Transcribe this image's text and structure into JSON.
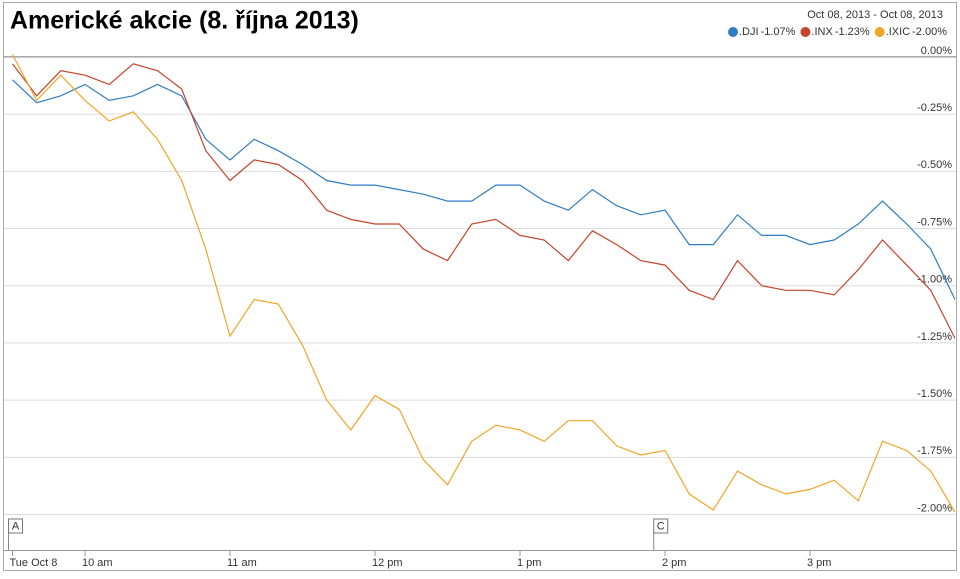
{
  "chart_data": {
    "type": "line",
    "title": "Americké akcie (8. října 2013)",
    "date_range": "Oct 08, 2013  -  Oct 08, 2013",
    "x": [
      570,
      580,
      590,
      600,
      610,
      620,
      630,
      640,
      650,
      660,
      670,
      680,
      690,
      700,
      710,
      720,
      730,
      740,
      750,
      760,
      770,
      780,
      790,
      800,
      810,
      820,
      830,
      840,
      850,
      860,
      870,
      880,
      890,
      900,
      910,
      920,
      930,
      940,
      950,
      960
    ],
    "xlim": [
      570,
      960
    ],
    "xticks": [
      {
        "value": 570,
        "label": "Tue Oct 8"
      },
      {
        "value": 600,
        "label": "10 am"
      },
      {
        "value": 660,
        "label": "11 am"
      },
      {
        "value": 720,
        "label": "12 pm"
      },
      {
        "value": 780,
        "label": "1 pm"
      },
      {
        "value": 840,
        "label": "2 pm"
      },
      {
        "value": 900,
        "label": "3 pm"
      }
    ],
    "ylim": [
      -2.155,
      0.227
    ],
    "yticks": [
      {
        "value": 0,
        "label": "0.00%"
      },
      {
        "value": -0.25,
        "label": "-0.25%"
      },
      {
        "value": -0.5,
        "label": "-0.50%"
      },
      {
        "value": -0.75,
        "label": "-0.75%"
      },
      {
        "value": -1,
        "label": "-1.00%"
      },
      {
        "value": -1.25,
        "label": "-1.25%"
      },
      {
        "value": -1.5,
        "label": "-1.50%"
      },
      {
        "value": -1.75,
        "label": "-1.75%"
      },
      {
        "value": -2,
        "label": "-2.00%"
      }
    ],
    "grid": true,
    "legend": "top-right",
    "annotations": [
      {
        "label": "A",
        "x": 570
      },
      {
        "label": "C",
        "x": 837
      }
    ],
    "series": [
      {
        "name": ".DJI",
        "change": "-1.07%",
        "color": "#2f7ec1",
        "values": [
          -0.1,
          -0.2,
          -0.17,
          -0.12,
          -0.19,
          -0.17,
          -0.12,
          -0.17,
          -0.36,
          -0.45,
          -0.36,
          -0.41,
          -0.47,
          -0.54,
          -0.56,
          -0.56,
          -0.58,
          -0.6,
          -0.63,
          -0.63,
          -0.56,
          -0.56,
          -0.63,
          -0.67,
          -0.58,
          -0.65,
          -0.69,
          -0.67,
          -0.82,
          -0.82,
          -0.69,
          -0.78,
          -0.78,
          -0.82,
          -0.8,
          -0.73,
          -0.63,
          -0.73,
          -0.84,
          -1.06
        ]
      },
      {
        "name": ".INX",
        "change": "-1.23%",
        "color": "#c6452a",
        "values": [
          -0.03,
          -0.17,
          -0.06,
          -0.08,
          -0.12,
          -0.03,
          -0.06,
          -0.14,
          -0.41,
          -0.54,
          -0.45,
          -0.47,
          -0.54,
          -0.67,
          -0.71,
          -0.73,
          -0.73,
          -0.84,
          -0.89,
          -0.73,
          -0.71,
          -0.78,
          -0.8,
          -0.89,
          -0.76,
          -0.82,
          -0.89,
          -0.91,
          -1.02,
          -1.06,
          -0.89,
          -1.0,
          -1.02,
          -1.02,
          -1.04,
          -0.93,
          -0.8,
          -0.91,
          -1.02,
          -1.23
        ]
      },
      {
        "name": ".IXIC",
        "change": "-2.00%",
        "color": "#f0a526",
        "values": [
          0.01,
          -0.19,
          -0.08,
          -0.19,
          -0.28,
          -0.24,
          -0.36,
          -0.54,
          -0.84,
          -1.22,
          -1.06,
          -1.08,
          -1.26,
          -1.5,
          -1.63,
          -1.48,
          -1.54,
          -1.76,
          -1.87,
          -1.68,
          -1.61,
          -1.63,
          -1.68,
          -1.59,
          -1.59,
          -1.7,
          -1.74,
          -1.72,
          -1.91,
          -1.98,
          -1.81,
          -1.87,
          -1.91,
          -1.89,
          -1.85,
          -1.94,
          -1.68,
          -1.72,
          -1.81,
          -1.99
        ]
      }
    ]
  }
}
